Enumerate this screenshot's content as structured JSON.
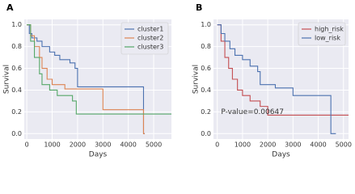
{
  "chart_data": [
    {
      "type": "line",
      "label": "A",
      "xlabel": "Days",
      "ylabel": "Survival",
      "xlim": [
        -100,
        5700
      ],
      "ylim": [
        -0.05,
        1.05
      ],
      "xticks": [
        0,
        1000,
        2000,
        3000,
        4000,
        5000
      ],
      "yticks": [
        {
          "value": 0,
          "label": "0.0"
        },
        0.2,
        0.4,
        0.6,
        0.8,
        {
          "value": 1,
          "label": "1.0"
        }
      ],
      "grid": true,
      "legend": "upper right",
      "series": [
        {
          "name": "cluster1",
          "color": "#4c72b0",
          "x": [
            0,
            100,
            100,
            200,
            200,
            400,
            400,
            600,
            600,
            900,
            900,
            1100,
            1100,
            1300,
            1300,
            1700,
            1700,
            1900,
            1900,
            2000,
            2000,
            4600,
            4600,
            4650
          ],
          "values": [
            1.0,
            1.0,
            0.92,
            0.92,
            0.88,
            0.88,
            0.85,
            0.85,
            0.8,
            0.8,
            0.75,
            0.75,
            0.72,
            0.72,
            0.68,
            0.68,
            0.65,
            0.65,
            0.6,
            0.6,
            0.43,
            0.43,
            0.0,
            0.0
          ]
        },
        {
          "name": "cluster2",
          "color": "#dd8452",
          "x": [
            0,
            150,
            150,
            300,
            300,
            500,
            500,
            600,
            600,
            800,
            800,
            1000,
            1000,
            1500,
            1500,
            3000,
            3000,
            4600,
            4600,
            4650
          ],
          "values": [
            1.0,
            1.0,
            0.9,
            0.9,
            0.8,
            0.8,
            0.7,
            0.7,
            0.6,
            0.6,
            0.5,
            0.5,
            0.45,
            0.45,
            0.41,
            0.41,
            0.22,
            0.22,
            0.0,
            0.0
          ]
        },
        {
          "name": "cluster3",
          "color": "#55a868",
          "x": [
            0,
            150,
            150,
            300,
            300,
            500,
            500,
            600,
            600,
            900,
            900,
            1200,
            1200,
            1800,
            1800,
            1950,
            1950,
            5700
          ],
          "values": [
            1.0,
            1.0,
            0.85,
            0.85,
            0.7,
            0.7,
            0.55,
            0.55,
            0.45,
            0.45,
            0.4,
            0.4,
            0.35,
            0.35,
            0.3,
            0.3,
            0.18,
            0.18
          ]
        }
      ]
    },
    {
      "type": "line",
      "label": "B",
      "xlabel": "Days",
      "ylabel": "Survival",
      "xlim": [
        -150,
        5200
      ],
      "ylim": [
        -0.05,
        1.05
      ],
      "xticks": [
        0,
        1000,
        2000,
        3000,
        4000,
        5000
      ],
      "yticks": [
        {
          "value": 0,
          "label": "0.0"
        },
        0.2,
        0.4,
        0.6,
        0.8,
        {
          "value": 1,
          "label": "1.0"
        }
      ],
      "grid": true,
      "legend": "upper right",
      "annotation": {
        "text": "P-value=0.00647",
        "x": 150,
        "y": 0.2
      },
      "series": [
        {
          "name": "high_risk",
          "color": "#c44e52",
          "x": [
            0,
            150,
            150,
            300,
            300,
            450,
            450,
            600,
            600,
            800,
            800,
            1000,
            1000,
            1300,
            1300,
            1700,
            1700,
            2000,
            2000,
            5200
          ],
          "values": [
            1.0,
            1.0,
            0.85,
            0.85,
            0.7,
            0.7,
            0.6,
            0.6,
            0.5,
            0.5,
            0.4,
            0.4,
            0.35,
            0.35,
            0.3,
            0.3,
            0.25,
            0.25,
            0.17,
            0.17
          ]
        },
        {
          "name": "low_risk",
          "color": "#4c72b0",
          "x": [
            0,
            150,
            150,
            300,
            300,
            500,
            500,
            700,
            700,
            1000,
            1000,
            1300,
            1300,
            1600,
            1600,
            1700,
            1700,
            2300,
            2300,
            3000,
            3000,
            4500,
            4500,
            4700
          ],
          "values": [
            1.0,
            1.0,
            0.92,
            0.92,
            0.85,
            0.85,
            0.78,
            0.78,
            0.72,
            0.72,
            0.68,
            0.68,
            0.62,
            0.62,
            0.57,
            0.57,
            0.45,
            0.45,
            0.42,
            0.42,
            0.35,
            0.35,
            0.0,
            0.0
          ]
        }
      ]
    }
  ]
}
